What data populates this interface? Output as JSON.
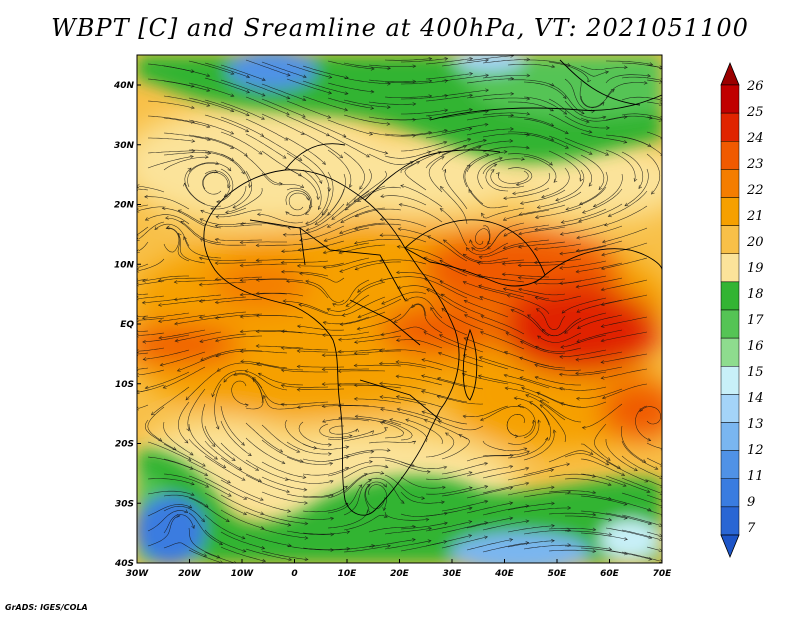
{
  "title": "WBPT [C] and Sreamline at 400hPa, VT: 2021051100",
  "credit": "GrADS: IGES/COLA",
  "lon_labels": [
    "30W",
    "20W",
    "10W",
    "0",
    "10E",
    "20E",
    "30E",
    "40E",
    "50E",
    "60E",
    "70E"
  ],
  "lat_labels": [
    "40N",
    "30N",
    "20N",
    "10N",
    "EQ",
    "10S",
    "20S",
    "30S",
    "40S"
  ],
  "colorbar": {
    "levels": [
      "26",
      "25",
      "24",
      "23",
      "22",
      "21",
      "20",
      "19",
      "18",
      "17",
      "16",
      "15",
      "14",
      "13",
      "12",
      "11",
      "9",
      "7"
    ],
    "colors": [
      "#9b0000",
      "#c00000",
      "#e02400",
      "#f05a00",
      "#f47d00",
      "#f6a000",
      "#f8c048",
      "#fbe39a",
      "#33b433",
      "#55c455",
      "#8edc8e",
      "#c8f0f8",
      "#a4d4f8",
      "#7ab6f0",
      "#5092e6",
      "#3a7ce0",
      "#2a66d4",
      "#1d55c8"
    ]
  },
  "map_regions": {
    "warm_core": "dark orange / red",
    "north_band": "green",
    "north_edge_cold": "blue",
    "southeast_cold_pool": "blue",
    "southwest_cold_pool": "blue"
  }
}
